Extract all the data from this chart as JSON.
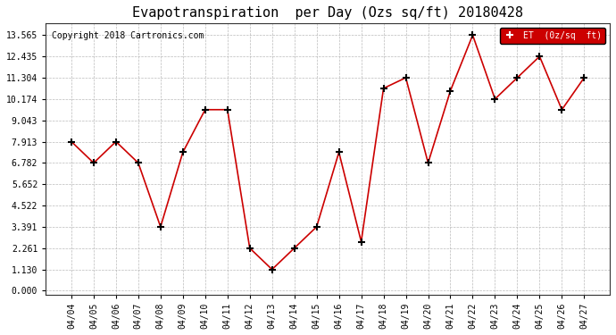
{
  "title": "Evapotranspiration  per Day (Ozs sq/ft) 20180428",
  "copyright": "Copyright 2018 Cartronics.com",
  "legend_label": "ET  (0z/sq  ft)",
  "dates": [
    "04/04",
    "04/05",
    "04/06",
    "04/07",
    "04/08",
    "04/09",
    "04/10",
    "04/11",
    "04/12",
    "04/13",
    "04/14",
    "04/15",
    "04/16",
    "04/17",
    "04/18",
    "04/19",
    "04/20",
    "04/21",
    "04/22",
    "04/23",
    "04/24",
    "04/25",
    "04/26",
    "04/27"
  ],
  "values": [
    7.913,
    6.782,
    7.913,
    6.782,
    3.391,
    7.348,
    9.608,
    9.608,
    2.261,
    1.13,
    2.261,
    3.391,
    7.348,
    2.6,
    10.739,
    11.304,
    6.782,
    10.609,
    13.565,
    10.174,
    11.304,
    12.435,
    9.608,
    11.304
  ],
  "line_color": "#cc0000",
  "marker_color": "#000000",
  "bg_color": "#ffffff",
  "grid_color": "#aaaaaa",
  "ylim_min": -0.2,
  "ylim_max": 14.2,
  "yticks": [
    0.0,
    1.13,
    2.261,
    3.391,
    4.522,
    5.652,
    6.782,
    7.913,
    9.043,
    10.174,
    11.304,
    12.435,
    13.565
  ],
  "legend_bg": "#cc0000",
  "legend_text_color": "#ffffff"
}
